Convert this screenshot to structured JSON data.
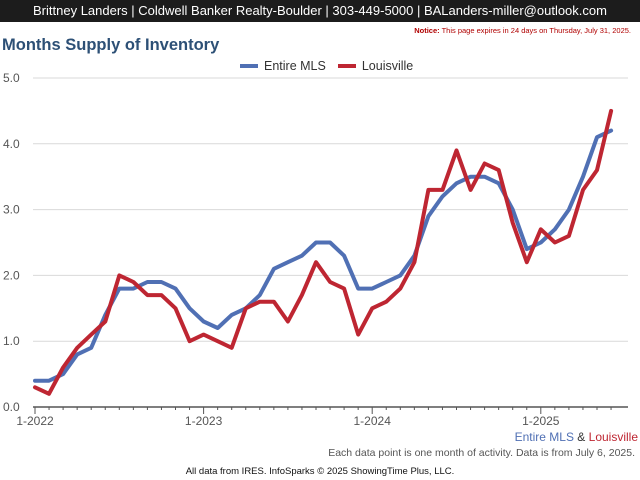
{
  "header": {
    "agent_info": "Brittney Landers | Coldwell Banker Realty-Boulder | 303-449-5000 | BALanders-miller@outlook.com"
  },
  "notice": {
    "label": "Notice:",
    "text": "This page expires in 24 days on Thursday, July 31, 2025."
  },
  "footnote": "Each data point is one month of activity. Data is from July 6, 2025.",
  "credits": "All data from IRES. InfoSparks © 2025 ShowingTime Plus, LLC.",
  "series_caption": {
    "first": "Entire MLS",
    "separator": " & ",
    "second": "Louisville"
  },
  "colors": {
    "entire_mls": "#5070b4",
    "louisville": "#be2632",
    "title": "#2d5076",
    "grid": "#d9d9d9"
  },
  "chart_data": {
    "type": "line",
    "title": "Months Supply of Inventory",
    "xlabel": "",
    "ylabel": "",
    "ylim": [
      0,
      5
    ],
    "yticks": [
      "0.0",
      "1.0",
      "2.0",
      "3.0",
      "4.0",
      "5.0"
    ],
    "xticks": [
      "1-2022",
      "1-2023",
      "1-2024",
      "1-2025"
    ],
    "x": [
      "2022-01",
      "2022-02",
      "2022-03",
      "2022-04",
      "2022-05",
      "2022-06",
      "2022-07",
      "2022-08",
      "2022-09",
      "2022-10",
      "2022-11",
      "2022-12",
      "2023-01",
      "2023-02",
      "2023-03",
      "2023-04",
      "2023-05",
      "2023-06",
      "2023-07",
      "2023-08",
      "2023-09",
      "2023-10",
      "2023-11",
      "2023-12",
      "2024-01",
      "2024-02",
      "2024-03",
      "2024-04",
      "2024-05",
      "2024-06",
      "2024-07",
      "2024-08",
      "2024-09",
      "2024-10",
      "2024-11",
      "2024-12",
      "2025-01",
      "2025-02",
      "2025-03",
      "2025-04",
      "2025-05",
      "2025-06"
    ],
    "grid": true,
    "legend_position": "top-center",
    "series": [
      {
        "name": "Entire MLS",
        "values": [
          0.4,
          0.4,
          0.5,
          0.8,
          0.9,
          1.4,
          1.8,
          1.8,
          1.9,
          1.9,
          1.8,
          1.5,
          1.3,
          1.2,
          1.4,
          1.5,
          1.7,
          2.1,
          2.2,
          2.3,
          2.5,
          2.5,
          2.3,
          1.8,
          1.8,
          1.9,
          2.0,
          2.3,
          2.9,
          3.2,
          3.4,
          3.5,
          3.5,
          3.4,
          3.0,
          2.4,
          2.5,
          2.7,
          3.0,
          3.5,
          4.1,
          4.2
        ]
      },
      {
        "name": "Louisville",
        "values": [
          0.3,
          0.2,
          0.6,
          0.9,
          1.1,
          1.3,
          2.0,
          1.9,
          1.7,
          1.7,
          1.5,
          1.0,
          1.1,
          1.0,
          0.9,
          1.5,
          1.6,
          1.6,
          1.3,
          1.7,
          2.2,
          1.9,
          1.8,
          1.1,
          1.5,
          1.6,
          1.8,
          2.2,
          3.3,
          3.3,
          3.9,
          3.3,
          3.7,
          3.6,
          2.8,
          2.2,
          2.7,
          2.5,
          2.6,
          3.3,
          3.6,
          4.5
        ]
      }
    ]
  }
}
